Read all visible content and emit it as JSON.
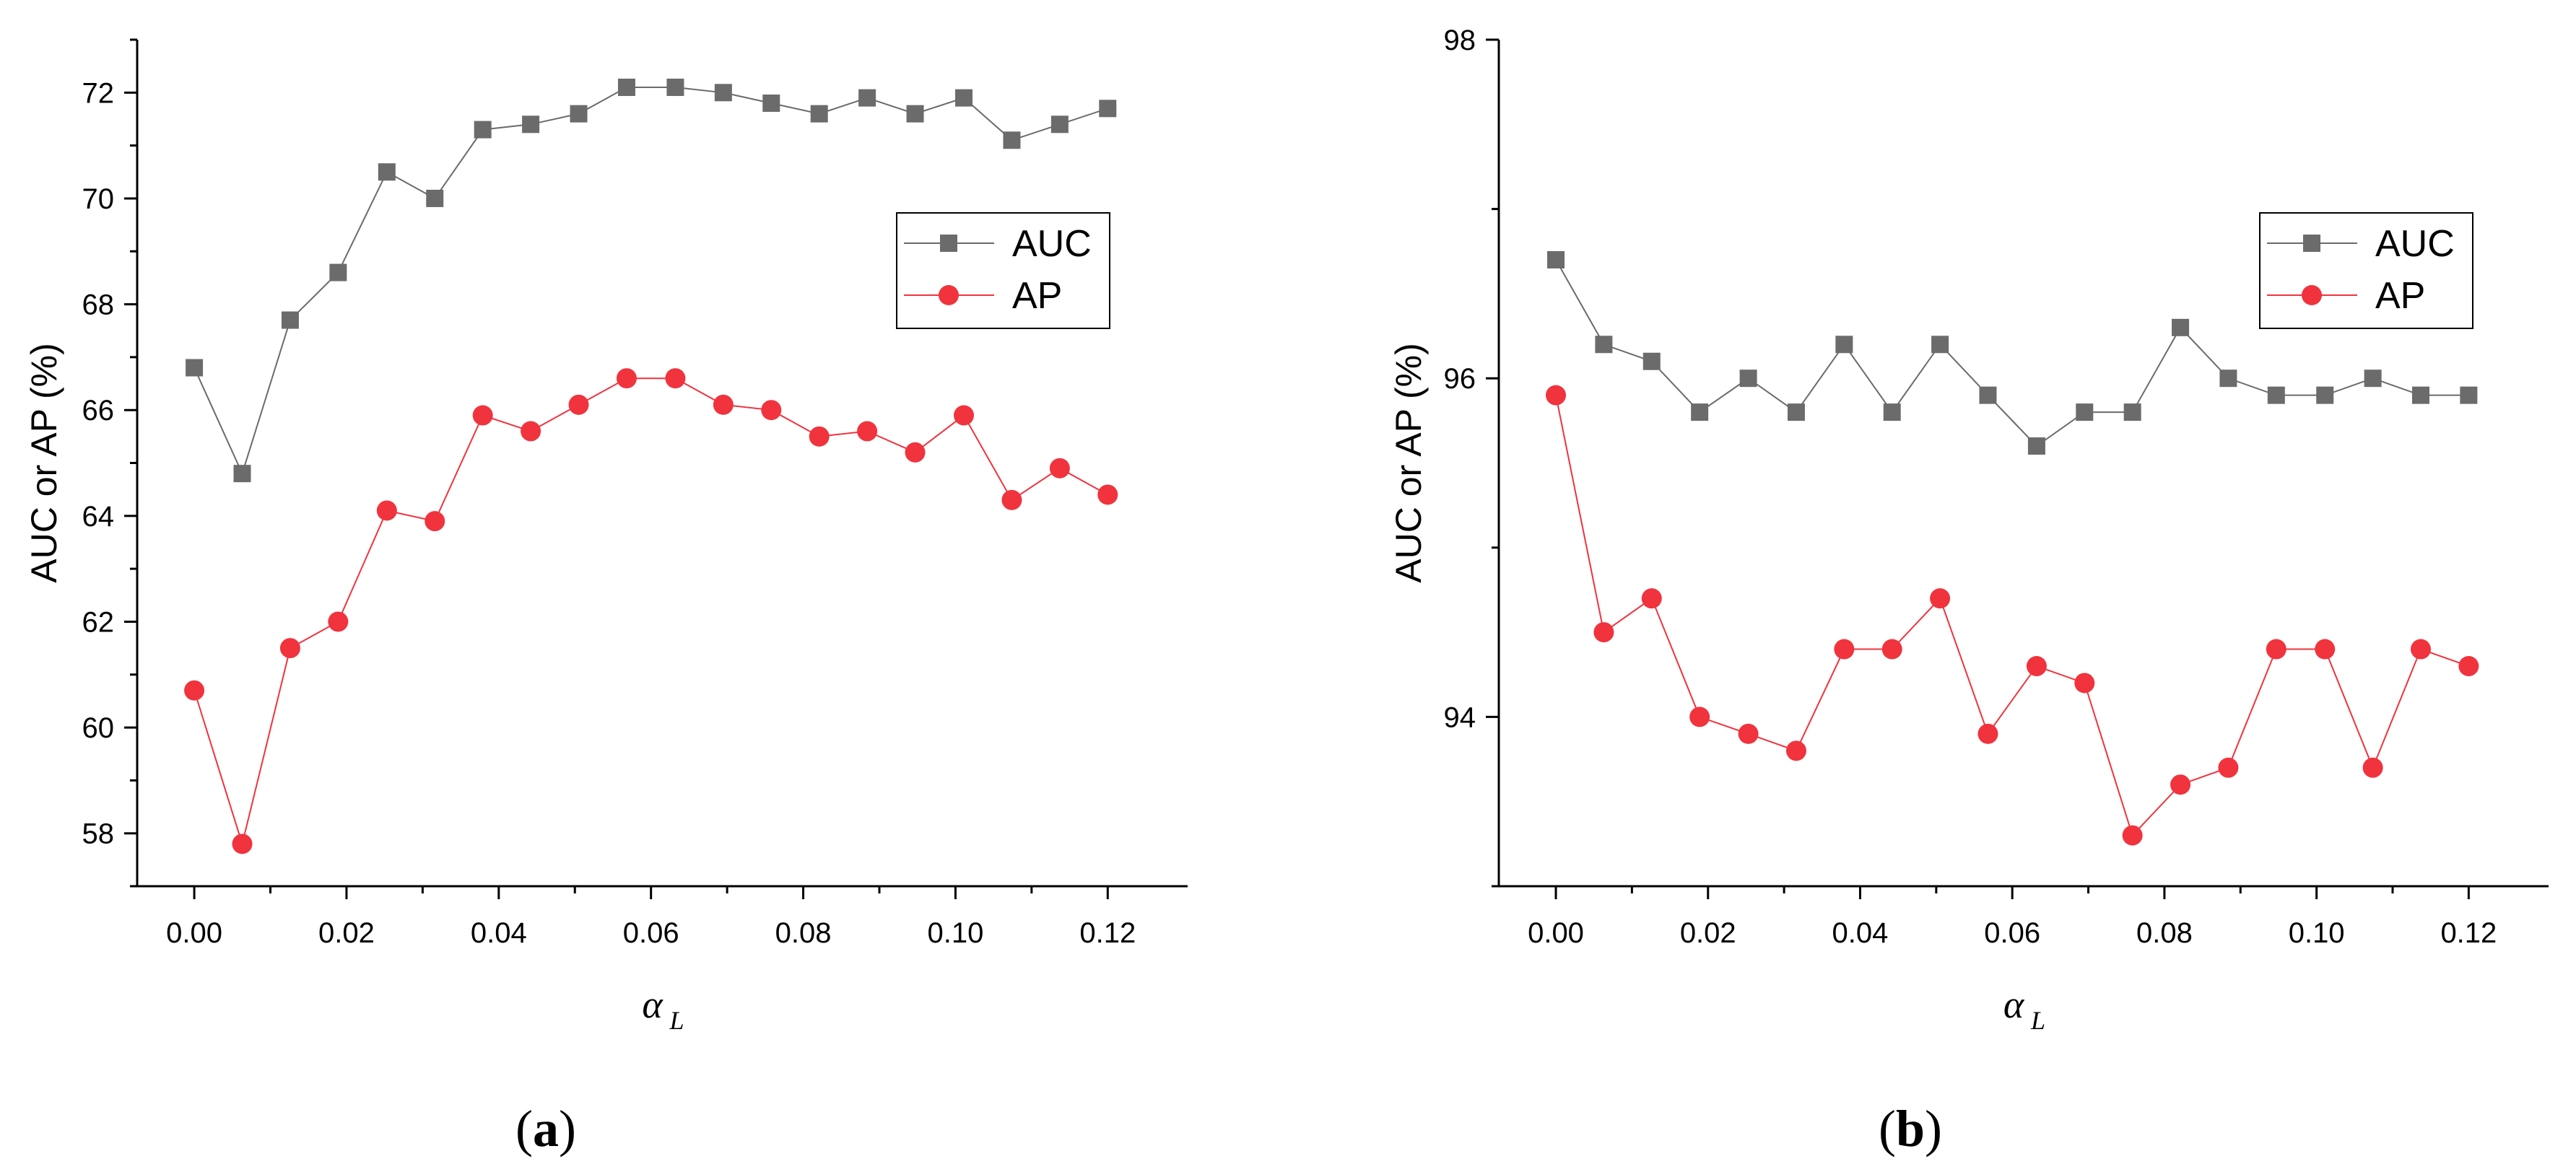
{
  "chart_data": [
    {
      "type": "line",
      "panel_label": "a",
      "title": "",
      "xlabel": "α",
      "xlabel_subscript": "L",
      "ylabel": "AUC or AP (%)",
      "xlim": [
        -0.0075,
        0.1305
      ],
      "ylim": [
        57.0,
        73.0
      ],
      "x_ticks": [
        0.0,
        0.02,
        0.04,
        0.06,
        0.08,
        0.1,
        0.12
      ],
      "x_tick_labels": [
        "0.00",
        "0.02",
        "0.04",
        "0.06",
        "0.08",
        "0.10",
        "0.12"
      ],
      "x_minor_ticks": [
        0.01,
        0.03,
        0.05,
        0.07,
        0.09,
        0.11
      ],
      "y_ticks": [
        58,
        60,
        62,
        64,
        66,
        68,
        70,
        72
      ],
      "y_tick_labels": [
        "58",
        "60",
        "62",
        "64",
        "66",
        "68",
        "70",
        "72"
      ],
      "y_minor_ticks": [
        57,
        59,
        61,
        63,
        65,
        67,
        69,
        71,
        73
      ],
      "grid": false,
      "legend_position": "right",
      "x": [
        0.0,
        0.0063,
        0.0126,
        0.0189,
        0.0253,
        0.0316,
        0.0379,
        0.0442,
        0.0505,
        0.0568,
        0.0632,
        0.0695,
        0.0758,
        0.0821,
        0.0884,
        0.0947,
        0.1011,
        0.1074,
        0.1137,
        0.12
      ],
      "series": [
        {
          "name": "AUC",
          "marker": "square",
          "color": "#6b6b6b",
          "values": [
            66.8,
            64.8,
            67.7,
            68.6,
            70.5,
            70.0,
            71.3,
            71.4,
            71.6,
            72.1,
            72.1,
            72.0,
            71.8,
            71.6,
            71.9,
            71.6,
            71.9,
            71.1,
            71.4,
            71.7
          ]
        },
        {
          "name": "AP",
          "marker": "circle",
          "color": "#f0333d",
          "values": [
            60.7,
            57.8,
            61.5,
            62.0,
            64.1,
            63.9,
            65.9,
            65.6,
            66.1,
            66.6,
            66.6,
            66.1,
            66.0,
            65.5,
            65.6,
            65.2,
            65.9,
            64.3,
            64.9,
            64.4
          ]
        }
      ]
    },
    {
      "type": "line",
      "panel_label": "b",
      "title": "",
      "xlabel": "α",
      "xlabel_subscript": "L",
      "ylabel": "AUC or AP (%)",
      "xlim": [
        -0.0075,
        0.1305
      ],
      "ylim": [
        93.0,
        98.0
      ],
      "x_ticks": [
        0.0,
        0.02,
        0.04,
        0.06,
        0.08,
        0.1,
        0.12
      ],
      "x_tick_labels": [
        "0.00",
        "0.02",
        "0.04",
        "0.06",
        "0.08",
        "0.10",
        "0.12"
      ],
      "x_minor_ticks": [
        0.01,
        0.03,
        0.05,
        0.07,
        0.09,
        0.11
      ],
      "y_ticks": [
        94,
        96,
        98
      ],
      "y_tick_labels": [
        "94",
        "96",
        "98"
      ],
      "y_minor_ticks": [
        93,
        95,
        97
      ],
      "grid": false,
      "legend_position": "top-right",
      "x": [
        0.0,
        0.0063,
        0.0126,
        0.0189,
        0.0253,
        0.0316,
        0.0379,
        0.0442,
        0.0505,
        0.0568,
        0.0632,
        0.0695,
        0.0758,
        0.0821,
        0.0884,
        0.0947,
        0.1011,
        0.1074,
        0.1137,
        0.12
      ],
      "series": [
        {
          "name": "AUC",
          "marker": "square",
          "color": "#6b6b6b",
          "values": [
            96.7,
            96.2,
            96.1,
            95.8,
            96.0,
            95.8,
            96.2,
            95.8,
            96.2,
            95.9,
            95.6,
            95.8,
            95.8,
            96.3,
            96.0,
            95.9,
            95.9,
            96.0,
            95.9,
            95.9
          ]
        },
        {
          "name": "AP",
          "marker": "circle",
          "color": "#f0333d",
          "values": [
            95.9,
            94.5,
            94.7,
            94.0,
            93.9,
            93.8,
            94.4,
            94.4,
            94.7,
            93.9,
            94.3,
            94.2,
            93.3,
            93.6,
            93.7,
            94.4,
            94.4,
            93.7,
            94.4,
            94.3
          ]
        }
      ]
    }
  ]
}
